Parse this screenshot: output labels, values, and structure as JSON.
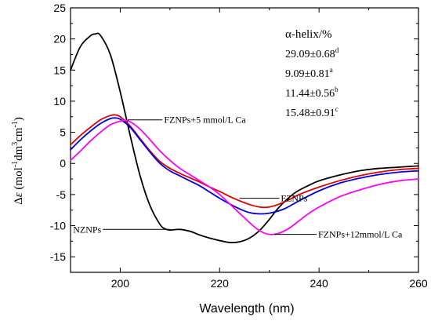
{
  "chart_data": {
    "type": "line",
    "title": "",
    "xlabel": "Wavelength (nm)",
    "ylabel_parts": {
      "base": "Δ",
      "epsilon": "ε",
      "open": " (mol",
      "sup1": "-1",
      "mid1": "dm",
      "sup2": "3",
      "mid2": "cm",
      "sup3": "-1",
      "close": ")"
    },
    "xlim": [
      190,
      260
    ],
    "ylim": [
      -17.5,
      25
    ],
    "x_ticks": [
      200,
      220,
      240,
      260
    ],
    "y_ticks": [
      -15,
      -10,
      -5,
      0,
      5,
      10,
      15,
      20,
      25
    ],
    "grid": false,
    "series": [
      {
        "name": "NZNPs",
        "color": "#000000",
        "x": [
          190,
          192,
          194,
          195,
          196,
          198,
          200,
          202,
          204,
          206,
          208,
          209,
          210,
          212,
          214,
          216,
          218,
          220,
          222,
          224,
          226,
          228,
          230,
          232,
          235,
          238,
          240,
          244,
          248,
          252,
          256,
          260
        ],
        "y": [
          15.0,
          18.8,
          20.5,
          20.8,
          20.6,
          17.5,
          11.5,
          4.5,
          -2.0,
          -6.8,
          -9.8,
          -10.5,
          -10.7,
          -10.6,
          -10.9,
          -11.5,
          -12.0,
          -12.4,
          -12.7,
          -12.6,
          -12.0,
          -10.8,
          -9.0,
          -7.0,
          -4.8,
          -3.5,
          -2.8,
          -1.9,
          -1.2,
          -0.8,
          -0.6,
          -0.4
        ]
      },
      {
        "name": "FZNPs",
        "color": "#e00000",
        "x": [
          190,
          192,
          194,
          196,
          198,
          199,
          200,
          202,
          204,
          206,
          208,
          210,
          212,
          214,
          216,
          218,
          220,
          222,
          224,
          226,
          228,
          230,
          233,
          236,
          240,
          244,
          248,
          252,
          256,
          260
        ],
        "y": [
          3.0,
          4.5,
          5.8,
          7.0,
          7.7,
          7.8,
          7.5,
          6.0,
          4.0,
          2.0,
          0.3,
          -0.8,
          -1.6,
          -2.3,
          -3.0,
          -3.8,
          -4.5,
          -5.3,
          -6.0,
          -6.6,
          -7.0,
          -7.0,
          -6.2,
          -5.0,
          -3.8,
          -2.8,
          -2.0,
          -1.4,
          -1.0,
          -0.8
        ]
      },
      {
        "name": "FZNPs+5 mmol/L Ca",
        "color": "#0000e0",
        "x": [
          190,
          192,
          194,
          196,
          198,
          199,
          200,
          202,
          204,
          206,
          208,
          210,
          212,
          214,
          216,
          218,
          220,
          222,
          224,
          226,
          228,
          230,
          233,
          236,
          240,
          244,
          248,
          252,
          256,
          260
        ],
        "y": [
          2.2,
          3.8,
          5.2,
          6.4,
          7.2,
          7.3,
          7.1,
          5.8,
          3.8,
          1.8,
          0.0,
          -1.2,
          -2.0,
          -2.8,
          -3.6,
          -4.6,
          -5.6,
          -6.5,
          -7.3,
          -7.9,
          -8.1,
          -8.0,
          -7.3,
          -6.0,
          -4.4,
          -3.2,
          -2.4,
          -1.8,
          -1.4,
          -1.2
        ]
      },
      {
        "name": "FZNPs+12mmol/L Ca",
        "color": "#ff00ff",
        "x": [
          190,
          192,
          194,
          196,
          198,
          200,
          201,
          202,
          204,
          206,
          208,
          210,
          212,
          214,
          216,
          218,
          220,
          222,
          224,
          226,
          228,
          230,
          232,
          234,
          236,
          238,
          240,
          244,
          248,
          252,
          256,
          260
        ],
        "y": [
          0.5,
          2.0,
          3.6,
          5.0,
          6.2,
          6.8,
          6.9,
          6.7,
          5.5,
          3.8,
          2.0,
          0.5,
          -0.8,
          -1.8,
          -2.8,
          -3.8,
          -5.0,
          -6.5,
          -8.0,
          -9.5,
          -10.8,
          -11.4,
          -11.2,
          -10.4,
          -9.2,
          -8.0,
          -7.0,
          -5.4,
          -4.3,
          -3.4,
          -2.8,
          -2.5
        ]
      }
    ],
    "curve_labels": [
      {
        "text": "FZNPs+5 mmol/L Ca",
        "target": [
          201.5,
          7.0
        ],
        "anchor": [
          208.5,
          7.0
        ]
      },
      {
        "text": "FZNPs",
        "target": [
          224.0,
          -5.6
        ],
        "anchor": [
          232.0,
          -5.6
        ]
      },
      {
        "text": "NZNPs",
        "target": [
          210.0,
          -10.6
        ],
        "anchor": [
          196.5,
          -10.6
        ]
      },
      {
        "text": "FZNPs+12mmol/L Ca",
        "target": [
          231.0,
          -11.4
        ],
        "anchor": [
          239.5,
          -11.4
        ]
      }
    ],
    "annotation": {
      "header": "α-helix/%",
      "rows": [
        {
          "value": "29.09±0.68",
          "sup": "d"
        },
        {
          "value": "9.09±0.81",
          "sup": "a"
        },
        {
          "value": "11.44±0.56",
          "sup": "b"
        },
        {
          "value": "15.48±0.91",
          "sup": "c"
        }
      ]
    }
  }
}
